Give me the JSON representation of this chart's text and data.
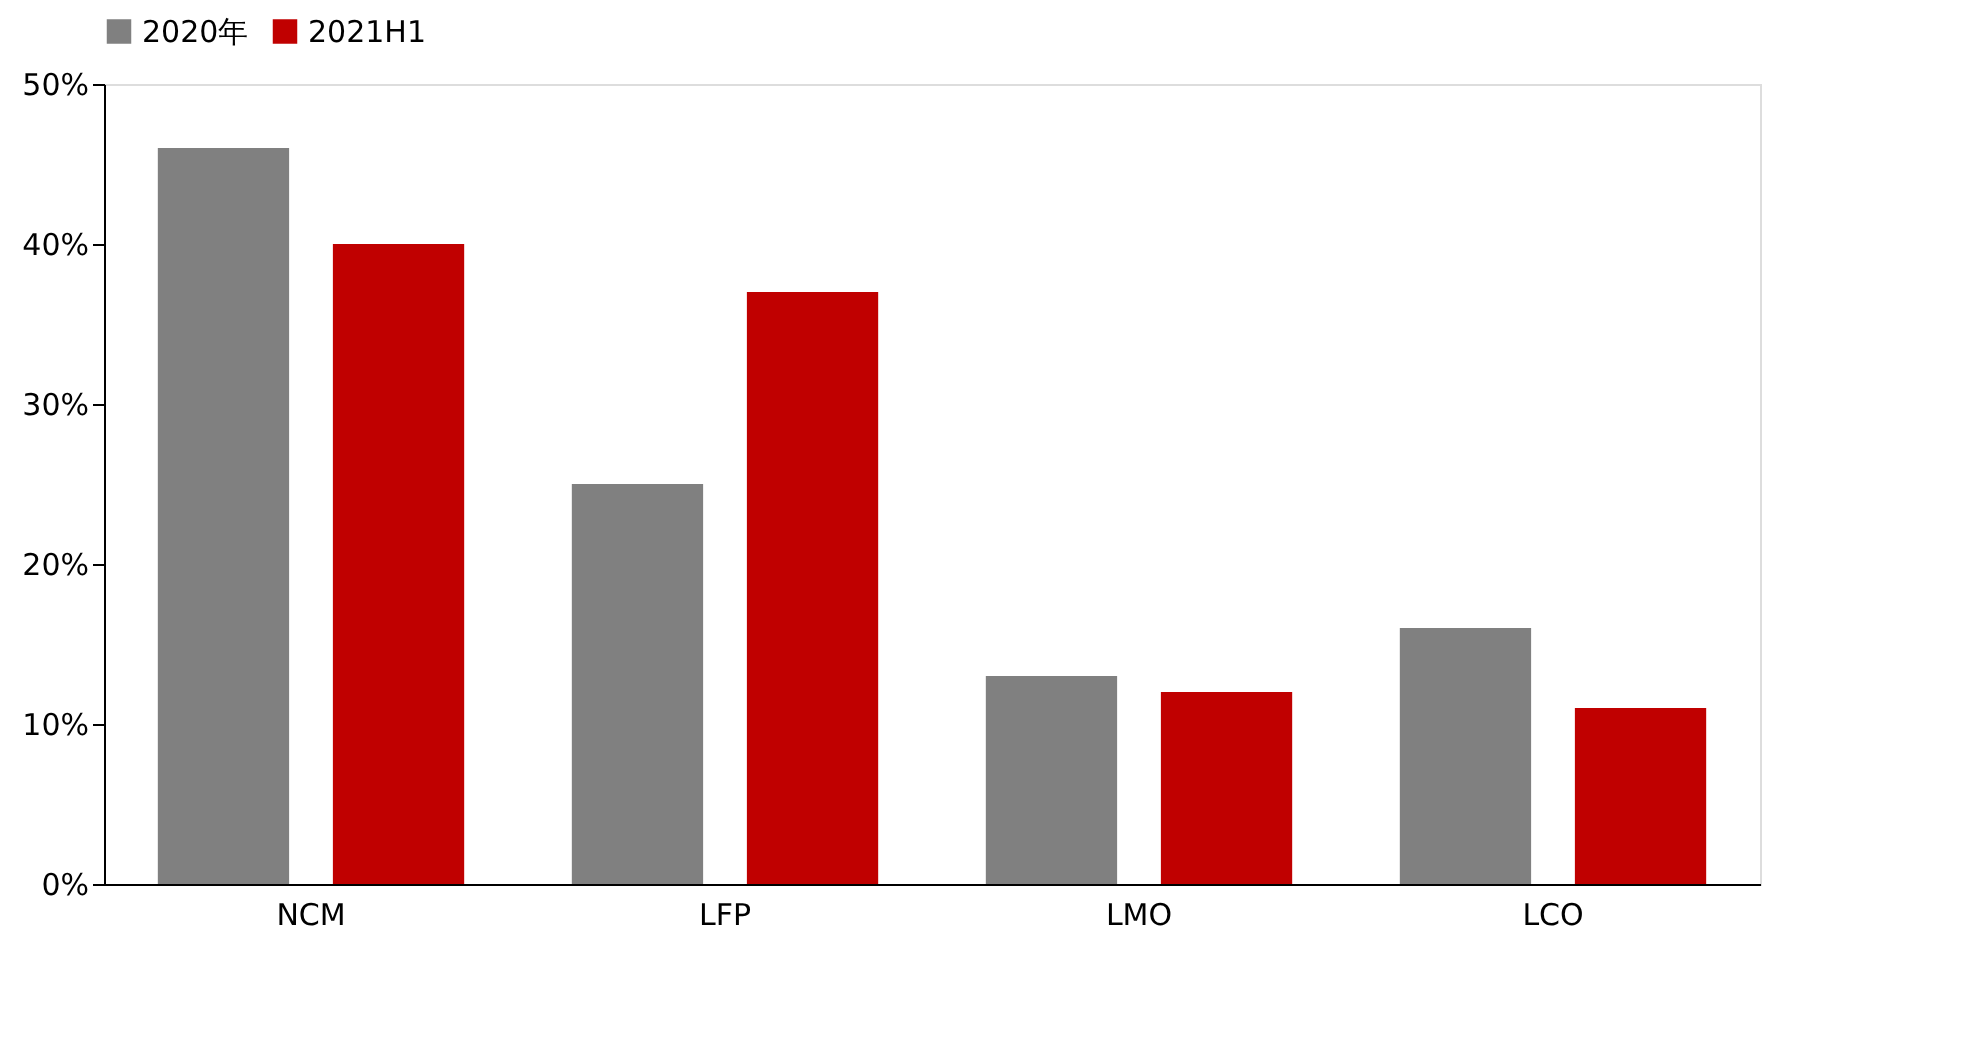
{
  "chart_data": {
    "type": "bar",
    "categories": [
      "NCM",
      "LFP",
      "LMO",
      "LCO"
    ],
    "series": [
      {
        "name": "2020年",
        "color": "#808080",
        "values": [
          46,
          25,
          13,
          16
        ]
      },
      {
        "name": "2021H1",
        "color": "#c00000",
        "values": [
          40,
          37,
          12,
          11
        ]
      }
    ],
    "ylim": [
      0,
      50
    ],
    "yticks": [
      {
        "value": 0,
        "label": "0%"
      },
      {
        "value": 10,
        "label": "10%"
      },
      {
        "value": 20,
        "label": "20%"
      },
      {
        "value": 30,
        "label": "30%"
      },
      {
        "value": 40,
        "label": "40%"
      },
      {
        "value": 50,
        "label": "50%"
      }
    ],
    "grid": false,
    "legend": "top"
  }
}
